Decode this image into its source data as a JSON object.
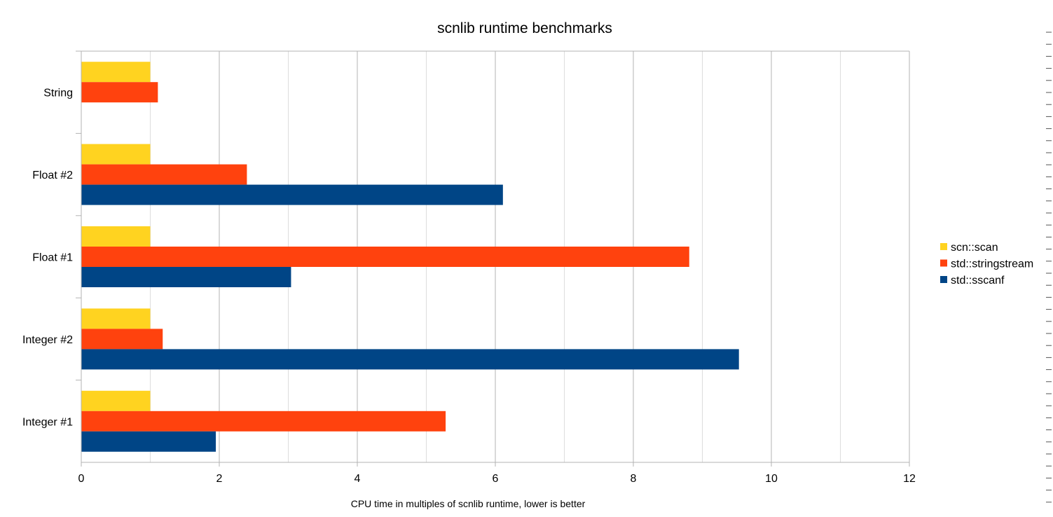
{
  "chart_data": {
    "type": "bar",
    "orientation": "horizontal",
    "title": "scnlib runtime benchmarks",
    "xlabel": "CPU time in multiples of scnlib runtime, lower is better",
    "ylabel": "",
    "categories": [
      "Integer #1",
      "Integer #2",
      "Float #1",
      "Float #2",
      "String"
    ],
    "series": [
      {
        "name": "scn::scan",
        "color": "#ffd320",
        "values": [
          1.0,
          1.0,
          1.0,
          1.0,
          1.0
        ]
      },
      {
        "name": "std::stringstream",
        "color": "#ff420e",
        "values": [
          5.28,
          1.18,
          8.81,
          2.4,
          1.11
        ]
      },
      {
        "name": "std::sscanf",
        "color": "#004586",
        "values": [
          1.95,
          9.53,
          3.04,
          6.11,
          null
        ]
      }
    ],
    "xlim": [
      0,
      12
    ],
    "xticks": [
      "0",
      "2",
      "4",
      "6",
      "8",
      "10",
      "12"
    ],
    "grid": "vertical, major and minor",
    "legend_position": "right"
  }
}
